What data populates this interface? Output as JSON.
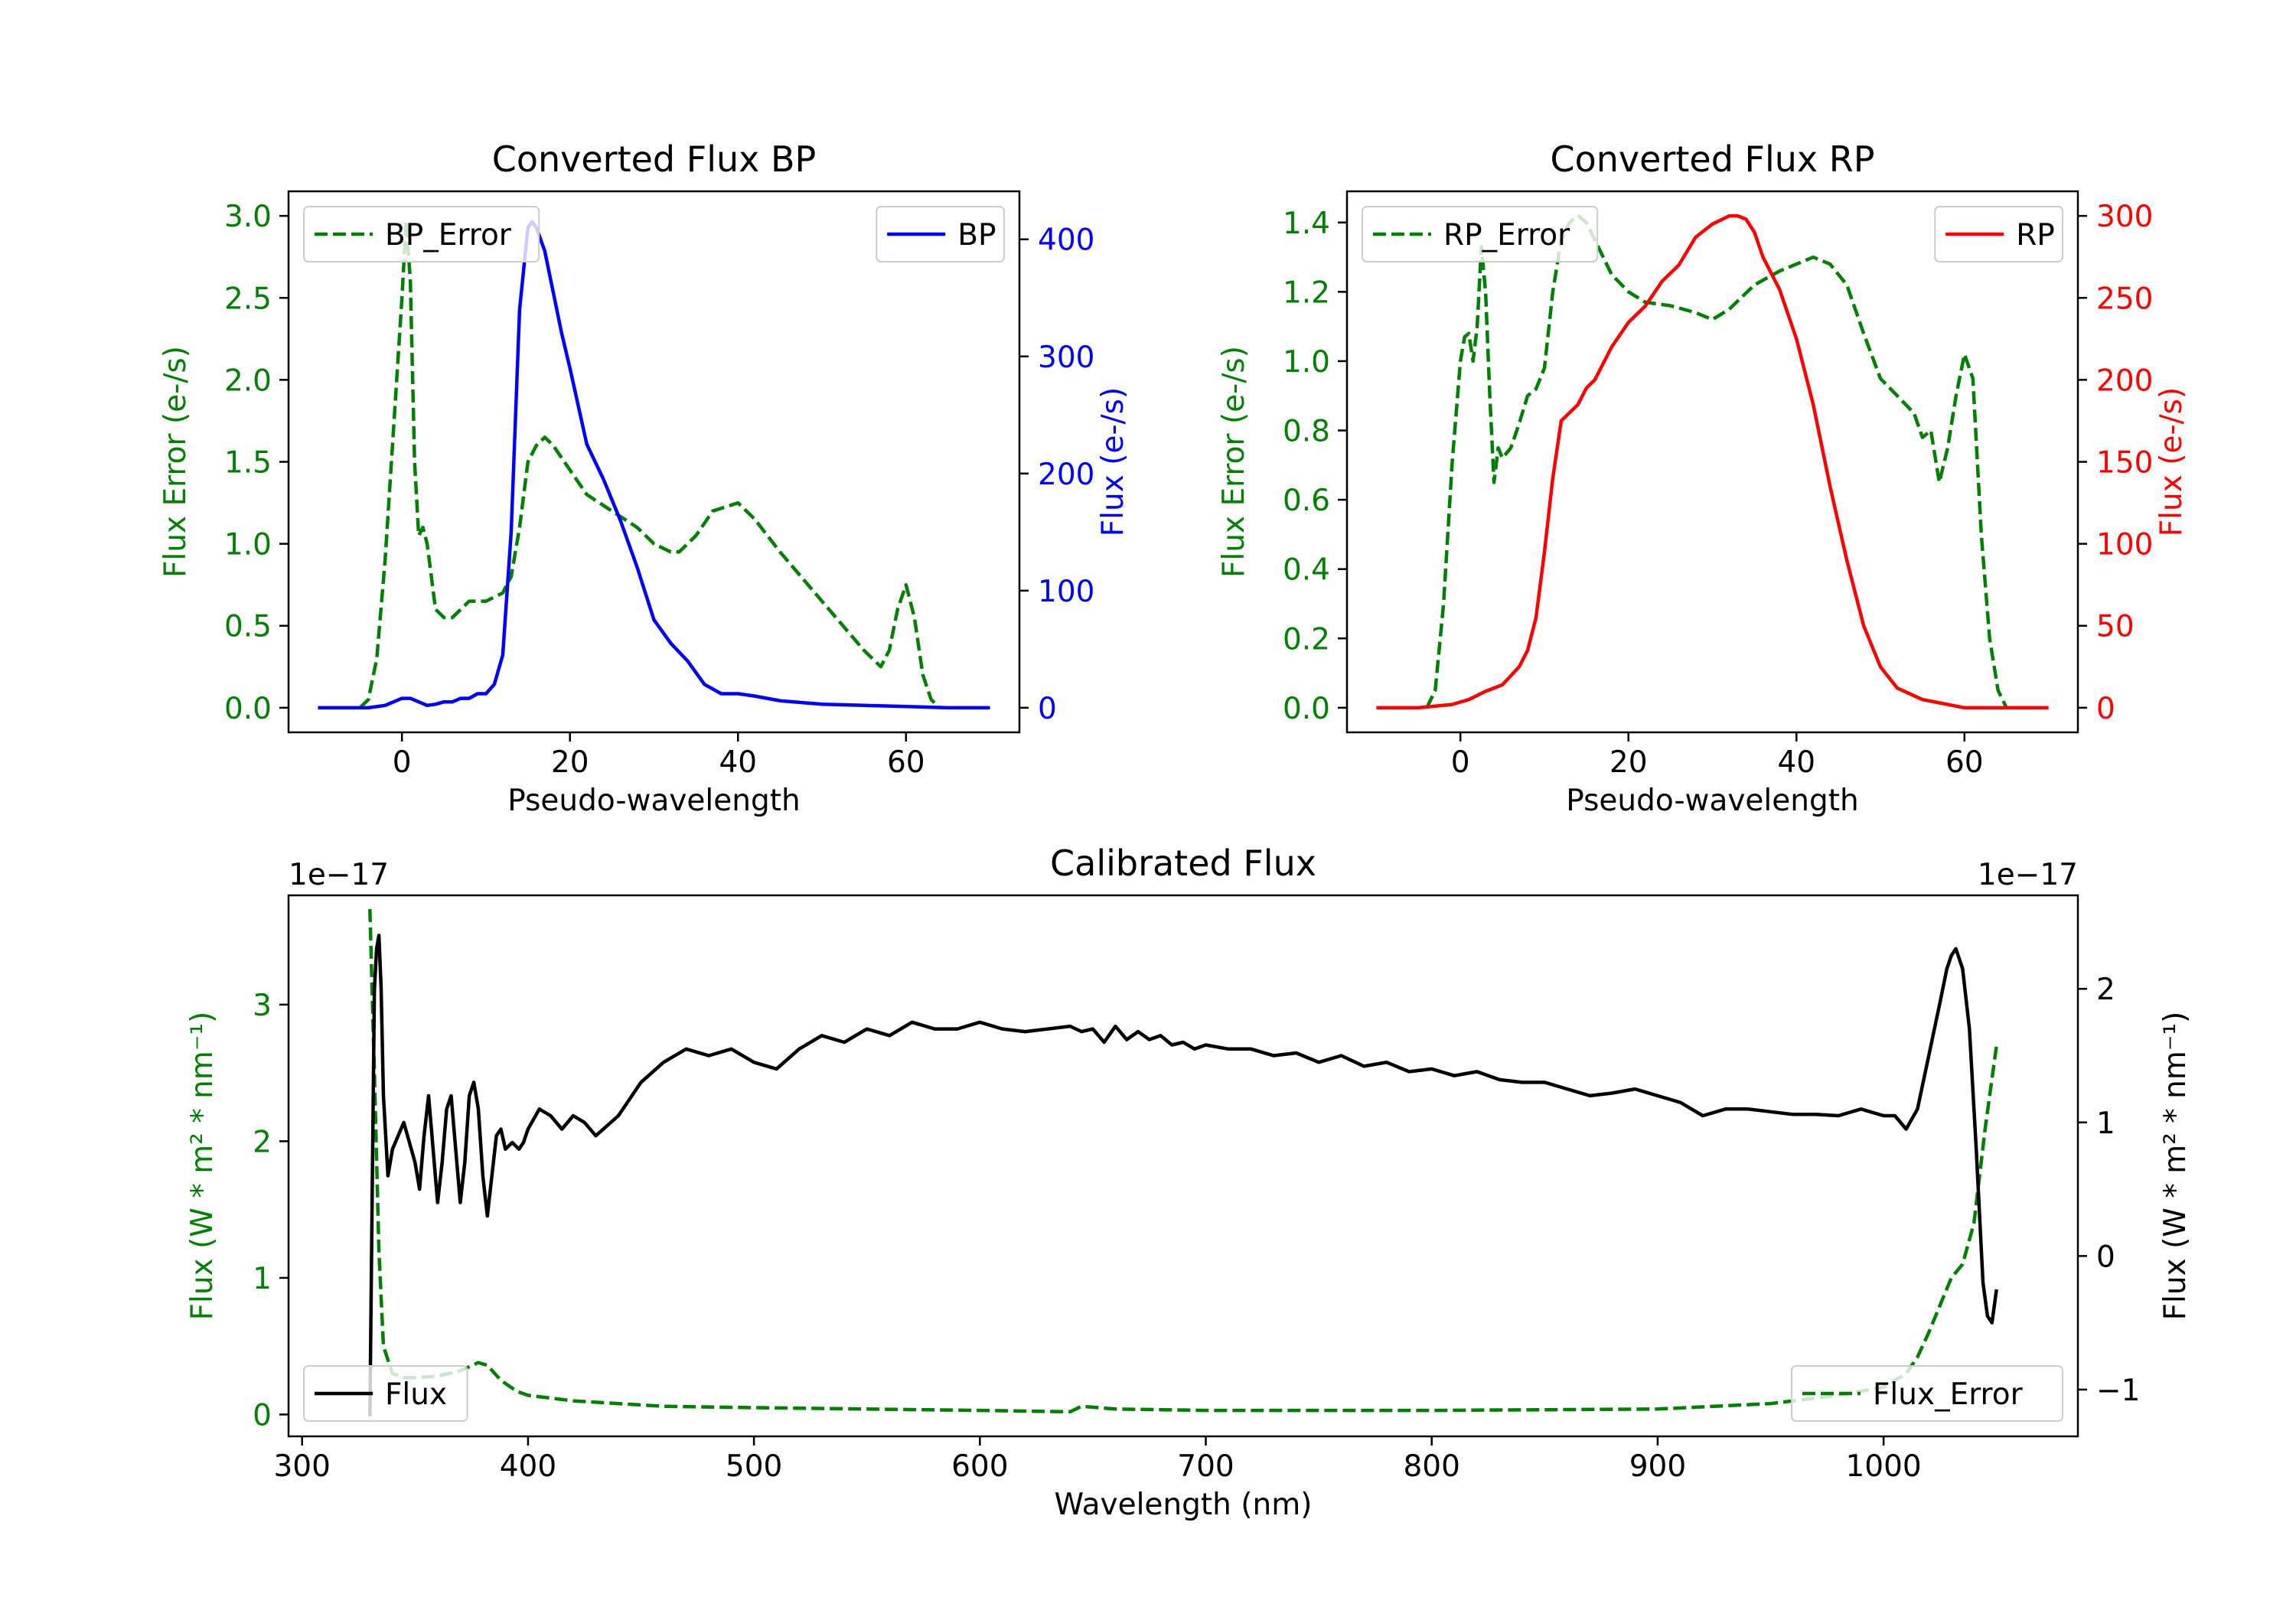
{
  "chart_data": [
    {
      "type": "line",
      "title": "Converted Flux BP",
      "xlabel": "Pseudo-wavelength",
      "ylabel_left": "Flux Error (e-/s)",
      "ylabel_right": "Flux (e-/s)",
      "xlim": [
        -13.5,
        73.5
      ],
      "ylim_left": [
        -0.15,
        3.15
      ],
      "ylim_right": [
        -21,
        441
      ],
      "xticks": [
        0,
        20,
        40,
        60
      ],
      "yticks_left": [
        0.0,
        0.5,
        1.0,
        1.5,
        2.0,
        2.5,
        3.0
      ],
      "yticks_right": [
        0,
        100,
        200,
        300,
        400
      ],
      "tick_labels_left": [
        "0.0",
        "0.5",
        "1.0",
        "1.5",
        "2.0",
        "2.5",
        "3.0"
      ],
      "colors": {
        "error": "#008000",
        "flux": "#0000ff",
        "left_axis": "#008000",
        "right_axis": "#0000ff"
      },
      "legend": [
        {
          "label": "BP_Error",
          "position": "upper-left",
          "style": "dashed",
          "color": "#008000"
        },
        {
          "label": "BP",
          "position": "upper-right",
          "style": "solid",
          "color": "#0000ff"
        }
      ],
      "series": [
        {
          "name": "BP_Error",
          "axis": "left",
          "style": "dashed",
          "color": "#008000",
          "x": [
            -5,
            -4,
            -3,
            -2,
            -1,
            0,
            0.5,
            1,
            1.5,
            2,
            2.5,
            3,
            3.5,
            4,
            5,
            6,
            7,
            8,
            10,
            12,
            13,
            14,
            15,
            16,
            17,
            18,
            20,
            22,
            25,
            28,
            30,
            32,
            33,
            35,
            37,
            40,
            42,
            45,
            50,
            55,
            57,
            58,
            59,
            60,
            61,
            62,
            63,
            64
          ],
          "y": [
            0.0,
            0.05,
            0.3,
            0.9,
            1.7,
            2.5,
            2.97,
            2.6,
            1.5,
            1.05,
            1.1,
            1.0,
            0.8,
            0.6,
            0.55,
            0.55,
            0.6,
            0.65,
            0.65,
            0.7,
            0.8,
            1.1,
            1.5,
            1.6,
            1.65,
            1.6,
            1.45,
            1.3,
            1.2,
            1.1,
            1.0,
            0.95,
            0.95,
            1.05,
            1.2,
            1.25,
            1.15,
            0.95,
            0.65,
            0.35,
            0.25,
            0.35,
            0.6,
            0.75,
            0.55,
            0.2,
            0.05,
            0.0
          ]
        },
        {
          "name": "BP",
          "axis": "right",
          "style": "solid",
          "color": "#0000ff",
          "x": [
            -10,
            -8,
            -6,
            -4,
            -2,
            0,
            1,
            2,
            3,
            4,
            5,
            6,
            7,
            8,
            9,
            10,
            11,
            12,
            13,
            14,
            15,
            15.5,
            16,
            17,
            18,
            19,
            20,
            22,
            24,
            26,
            28,
            30,
            32,
            34,
            35,
            36,
            38,
            40,
            42,
            45,
            50,
            55,
            60,
            65,
            70
          ],
          "y": [
            0,
            0,
            0,
            0,
            2,
            8,
            8,
            5,
            2,
            3,
            5,
            5,
            8,
            8,
            12,
            12,
            20,
            45,
            150,
            340,
            410,
            415,
            410,
            390,
            355,
            320,
            290,
            225,
            195,
            160,
            120,
            75,
            55,
            40,
            30,
            20,
            12,
            12,
            10,
            6,
            3,
            2,
            1,
            0,
            0
          ]
        }
      ]
    },
    {
      "type": "line",
      "title": "Converted Flux RP",
      "xlabel": "Pseudo-wavelength",
      "ylabel_left": "Flux Error (e-/s)",
      "ylabel_right": "Flux (e-/s)",
      "xlim": [
        -13.5,
        73.5
      ],
      "ylim_left": [
        -0.071,
        1.49
      ],
      "ylim_right": [
        -15,
        315
      ],
      "xticks": [
        0,
        20,
        40,
        60
      ],
      "yticks_left": [
        0.0,
        0.2,
        0.4,
        0.6,
        0.8,
        1.0,
        1.2,
        1.4
      ],
      "yticks_right": [
        0,
        50,
        100,
        150,
        200,
        250,
        300
      ],
      "tick_labels_left": [
        "0.0",
        "0.2",
        "0.4",
        "0.6",
        "0.8",
        "1.0",
        "1.2",
        "1.4"
      ],
      "colors": {
        "error": "#008000",
        "flux": "#ff0000",
        "left_axis": "#008000",
        "right_axis": "#ff0000"
      },
      "legend": [
        {
          "label": "RP_Error",
          "position": "upper-left",
          "style": "dashed",
          "color": "#008000"
        },
        {
          "label": "RP",
          "position": "upper-right",
          "style": "solid",
          "color": "#ff0000"
        }
      ],
      "series": [
        {
          "name": "RP_Error",
          "axis": "left",
          "style": "dashed",
          "color": "#008000",
          "x": [
            -4,
            -3,
            -2,
            -1,
            0,
            0.5,
            1,
            1.5,
            2,
            2.5,
            3,
            3.5,
            4,
            4.5,
            5,
            6,
            7,
            8,
            9,
            10,
            11,
            12,
            13,
            14,
            15,
            16,
            17,
            18,
            20,
            22,
            25,
            28,
            30,
            32,
            35,
            38,
            40,
            42,
            44,
            46,
            48,
            50,
            52,
            54,
            55,
            56,
            57,
            58,
            59,
            60,
            61,
            62,
            63,
            64,
            65
          ],
          "y": [
            0.0,
            0.05,
            0.3,
            0.7,
            1.0,
            1.07,
            1.08,
            1.0,
            1.1,
            1.33,
            1.2,
            0.9,
            0.65,
            0.75,
            0.72,
            0.75,
            0.82,
            0.9,
            0.92,
            0.98,
            1.2,
            1.35,
            1.4,
            1.42,
            1.4,
            1.35,
            1.3,
            1.25,
            1.2,
            1.17,
            1.16,
            1.14,
            1.12,
            1.15,
            1.22,
            1.26,
            1.28,
            1.3,
            1.28,
            1.22,
            1.08,
            0.95,
            0.9,
            0.85,
            0.78,
            0.8,
            0.65,
            0.75,
            0.9,
            1.02,
            0.95,
            0.5,
            0.2,
            0.05,
            0.0
          ]
        },
        {
          "name": "RP",
          "axis": "right",
          "style": "solid",
          "color": "#ff0000",
          "x": [
            -10,
            -5,
            -3,
            -1,
            1,
            3,
            5,
            7,
            8,
            9,
            10,
            11,
            12,
            13,
            14,
            15,
            16,
            18,
            20,
            22,
            24,
            26,
            28,
            30,
            32,
            33,
            34,
            35,
            36,
            38,
            40,
            42,
            44,
            46,
            48,
            50,
            52,
            55,
            58,
            60,
            62,
            65,
            70
          ],
          "y": [
            0,
            0,
            1,
            2,
            5,
            10,
            14,
            25,
            35,
            55,
            95,
            140,
            175,
            180,
            185,
            195,
            200,
            220,
            235,
            245,
            260,
            270,
            287,
            295,
            300,
            300,
            298,
            290,
            275,
            255,
            225,
            185,
            135,
            90,
            50,
            25,
            12,
            5,
            2,
            0,
            0,
            0,
            0
          ]
        }
      ]
    },
    {
      "type": "line",
      "title": "Calibrated Flux",
      "xlabel": "Wavelength (nm)",
      "ylabel_left": "Flux (W * m² * nm⁻¹)",
      "ylabel_right": "Flux (W * m² * nm⁻¹)",
      "offset_label_left": "1e−17",
      "offset_label_right": "1e−17",
      "xlim": [
        294,
        1086
      ],
      "ylim_left": [
        -0.16,
        3.8
      ],
      "ylim_right": [
        -1.35,
        2.7
      ],
      "xticks": [
        300,
        400,
        500,
        600,
        700,
        800,
        900,
        1000
      ],
      "yticks_left": [
        0,
        1,
        2,
        3
      ],
      "yticks_right": [
        -1,
        0,
        1,
        2
      ],
      "tick_labels_right": [
        "−1",
        "0",
        "1",
        "2"
      ],
      "colors": {
        "error": "#008000",
        "flux": "#000000",
        "left_axis": "#008000",
        "right_axis": "#000000"
      },
      "legend": [
        {
          "label": "Flux",
          "position": "lower-left",
          "style": "solid",
          "color": "#000000"
        },
        {
          "label": "Flux_Error",
          "position": "lower-right",
          "style": "dashed",
          "color": "#008000"
        }
      ],
      "series": [
        {
          "name": "Flux_Error",
          "axis": "left",
          "style": "dashed",
          "color": "#008000",
          "x": [
            330,
            332,
            334,
            336,
            340,
            345,
            350,
            360,
            370,
            378,
            382,
            388,
            395,
            400,
            410,
            420,
            440,
            460,
            500,
            550,
            600,
            640,
            645,
            660,
            700,
            800,
            900,
            950,
            980,
            1000,
            1010,
            1015,
            1020,
            1025,
            1030,
            1035,
            1040,
            1045,
            1050
          ],
          "y": [
            3.7,
            2.5,
            1.2,
            0.5,
            0.3,
            0.27,
            0.27,
            0.28,
            0.32,
            0.38,
            0.36,
            0.25,
            0.17,
            0.14,
            0.12,
            0.1,
            0.08,
            0.06,
            0.05,
            0.04,
            0.03,
            0.02,
            0.06,
            0.04,
            0.03,
            0.03,
            0.04,
            0.08,
            0.14,
            0.2,
            0.3,
            0.42,
            0.6,
            0.8,
            1.0,
            1.1,
            1.4,
            2.1,
            2.7
          ]
        },
        {
          "name": "Flux",
          "axis": "right",
          "style": "solid",
          "color": "#000000",
          "x": [
            330,
            331,
            332,
            333,
            334,
            335,
            336,
            338,
            340,
            345,
            350,
            352,
            354,
            356,
            358,
            360,
            362,
            364,
            366,
            368,
            370,
            372,
            374,
            376,
            378,
            380,
            382,
            384,
            386,
            388,
            390,
            393,
            396,
            398,
            400,
            405,
            410,
            415,
            420,
            425,
            430,
            440,
            450,
            460,
            470,
            480,
            490,
            500,
            510,
            520,
            530,
            540,
            550,
            560,
            570,
            580,
            590,
            600,
            610,
            620,
            630,
            640,
            645,
            650,
            655,
            660,
            665,
            670,
            675,
            680,
            685,
            690,
            695,
            700,
            710,
            720,
            730,
            740,
            750,
            760,
            770,
            780,
            790,
            800,
            810,
            820,
            830,
            840,
            850,
            860,
            870,
            880,
            890,
            900,
            910,
            920,
            930,
            940,
            950,
            960,
            970,
            980,
            990,
            1000,
            1005,
            1010,
            1015,
            1020,
            1025,
            1028,
            1030,
            1032,
            1035,
            1038,
            1041,
            1044,
            1046,
            1048,
            1050
          ],
          "y": [
            -1.2,
            0.4,
            2.0,
            2.3,
            2.4,
            2.0,
            1.2,
            0.6,
            0.8,
            1.0,
            0.7,
            0.5,
            0.9,
            1.2,
            0.8,
            0.4,
            0.7,
            1.1,
            1.2,
            0.8,
            0.4,
            0.7,
            1.2,
            1.3,
            1.1,
            0.6,
            0.3,
            0.6,
            0.9,
            0.95,
            0.8,
            0.85,
            0.8,
            0.85,
            0.95,
            1.1,
            1.05,
            0.95,
            1.05,
            1.0,
            0.9,
            1.05,
            1.3,
            1.45,
            1.55,
            1.5,
            1.55,
            1.45,
            1.4,
            1.55,
            1.65,
            1.6,
            1.7,
            1.65,
            1.75,
            1.7,
            1.7,
            1.75,
            1.7,
            1.68,
            1.7,
            1.72,
            1.68,
            1.7,
            1.6,
            1.72,
            1.62,
            1.68,
            1.62,
            1.65,
            1.58,
            1.6,
            1.55,
            1.58,
            1.55,
            1.55,
            1.5,
            1.52,
            1.45,
            1.5,
            1.42,
            1.45,
            1.38,
            1.4,
            1.35,
            1.38,
            1.32,
            1.3,
            1.3,
            1.25,
            1.2,
            1.22,
            1.25,
            1.2,
            1.15,
            1.05,
            1.1,
            1.1,
            1.08,
            1.06,
            1.06,
            1.05,
            1.1,
            1.05,
            1.05,
            0.95,
            1.1,
            1.5,
            1.9,
            2.15,
            2.25,
            2.3,
            2.15,
            1.7,
            0.8,
            -0.2,
            -0.45,
            -0.5,
            -0.25
          ]
        }
      ]
    }
  ]
}
